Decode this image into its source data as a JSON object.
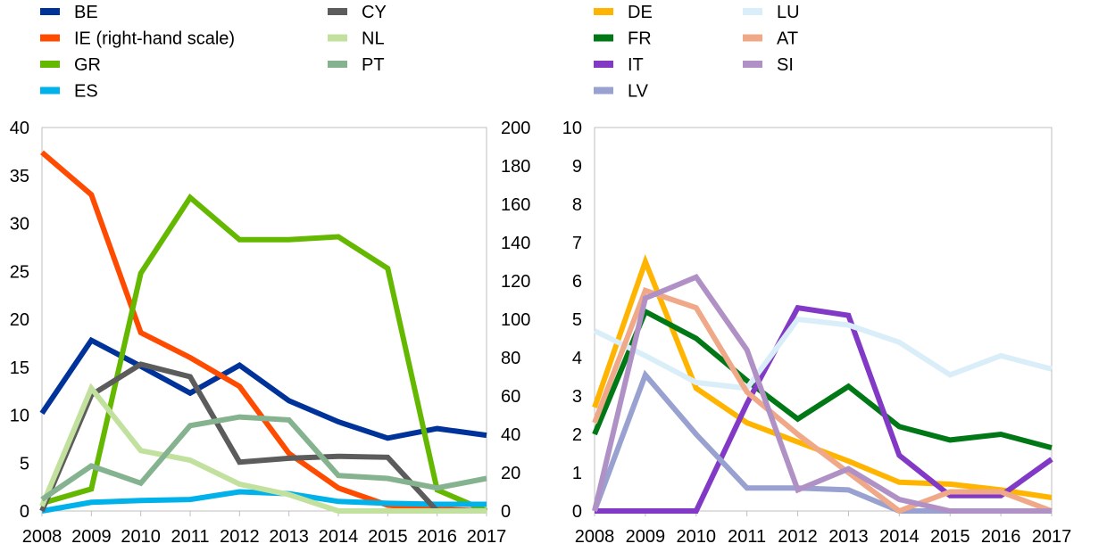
{
  "chart_data": [
    {
      "type": "line",
      "x": [
        "2008",
        "2009",
        "2010",
        "2011",
        "2012",
        "2013",
        "2014",
        "2015",
        "2016",
        "2017"
      ],
      "y_left": {
        "range": [
          0,
          40
        ],
        "ticks": [
          "0",
          "5",
          "10",
          "15",
          "20",
          "25",
          "30",
          "35",
          "40"
        ]
      },
      "y_right": {
        "range": [
          0,
          200
        ],
        "ticks": [
          "0",
          "20",
          "40",
          "60",
          "80",
          "100",
          "120",
          "140",
          "160",
          "180",
          "200"
        ]
      },
      "series": [
        {
          "name": "BE",
          "color": "#003399",
          "axis": "left",
          "values": [
            10.2,
            17.8,
            15.1,
            12.3,
            15.2,
            11.5,
            9.3,
            7.6,
            8.6,
            7.9
          ]
        },
        {
          "name": "IE (right-hand scale)",
          "color": "#ff4b00",
          "axis": "right",
          "values": [
            187,
            165,
            93,
            80,
            65,
            30,
            12,
            3,
            1,
            0
          ]
        },
        {
          "name": "GR",
          "color": "#65b800",
          "axis": "left",
          "values": [
            0.8,
            2.3,
            24.8,
            32.7,
            28.3,
            28.3,
            28.6,
            25.3,
            2.2,
            0.0
          ]
        },
        {
          "name": "ES",
          "color": "#00b1ea",
          "axis": "left",
          "values": [
            0.0,
            0.9,
            1.1,
            1.2,
            2.0,
            1.8,
            1.0,
            0.8,
            0.7,
            0.7
          ]
        },
        {
          "name": "CY",
          "color": "#5c5c5c",
          "axis": "left",
          "values": [
            0.0,
            12.1,
            15.3,
            14.0,
            5.1,
            5.5,
            5.7,
            5.6,
            0.0,
            0.0
          ]
        },
        {
          "name": "NL",
          "color": "#c3e19e",
          "axis": "left",
          "values": [
            0.5,
            12.8,
            6.3,
            5.3,
            2.8,
            1.7,
            0.0,
            0.0,
            0.0,
            0.0
          ]
        },
        {
          "name": "PT",
          "color": "#86b38f",
          "axis": "left",
          "values": [
            1.2,
            4.7,
            2.9,
            8.9,
            9.8,
            9.5,
            3.7,
            3.4,
            2.4,
            3.4
          ]
        }
      ]
    },
    {
      "type": "line",
      "x": [
        "2008",
        "2009",
        "2010",
        "2011",
        "2012",
        "2013",
        "2014",
        "2015",
        "2016",
        "2017"
      ],
      "y_left": {
        "range": [
          0,
          10
        ],
        "ticks": [
          "0",
          "1",
          "2",
          "3",
          "4",
          "5",
          "6",
          "7",
          "8",
          "9",
          "10"
        ]
      },
      "series": [
        {
          "name": "DE",
          "color": "#ffb400",
          "values": [
            2.7,
            6.5,
            3.2,
            2.3,
            1.8,
            1.3,
            0.75,
            0.7,
            0.55,
            0.35
          ]
        },
        {
          "name": "FR",
          "color": "#007816",
          "values": [
            2.0,
            5.2,
            4.5,
            3.4,
            2.4,
            3.25,
            2.2,
            1.85,
            2.0,
            1.65
          ]
        },
        {
          "name": "IT",
          "color": "#8139c6",
          "values": [
            0.0,
            0.0,
            0.0,
            2.8,
            5.3,
            5.1,
            1.45,
            0.4,
            0.4,
            1.35
          ]
        },
        {
          "name": "LV",
          "color": "#98a1d0",
          "values": [
            0.0,
            3.55,
            2.0,
            0.6,
            0.6,
            0.55,
            0.0,
            0.0,
            0.0,
            0.0
          ]
        },
        {
          "name": "LU",
          "color": "#d9eef8",
          "values": [
            4.7,
            4.05,
            3.35,
            3.2,
            5.0,
            4.85,
            4.4,
            3.55,
            4.05,
            3.7
          ]
        },
        {
          "name": "AT",
          "color": "#efa988",
          "values": [
            2.3,
            5.75,
            5.3,
            3.1,
            2.0,
            1.0,
            0.0,
            0.5,
            0.5,
            0.0
          ]
        },
        {
          "name": "SI",
          "color": "#b091c5",
          "values": [
            0.0,
            5.55,
            6.1,
            4.2,
            0.55,
            1.1,
            0.3,
            0.0,
            0.0,
            0.0
          ]
        }
      ]
    }
  ]
}
